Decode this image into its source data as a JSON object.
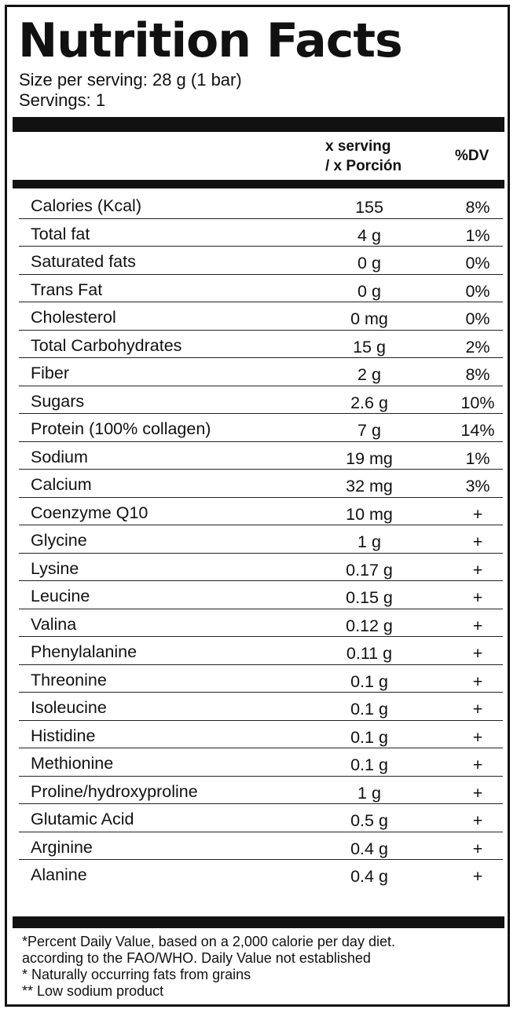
{
  "title": "Nutrition Facts",
  "serving_size": "Size per serving: 28 g (1 bar)",
  "servings": "Servings: 1",
  "columns": {
    "serving_line1": "x serving",
    "serving_line2": "/ x Porción",
    "dv": "%DV"
  },
  "rows": [
    {
      "name": "Calories (Kcal)",
      "amount": "155",
      "dv": "8%"
    },
    {
      "name": "Total fat",
      "amount": "4 g",
      "dv": "1%"
    },
    {
      "name": "Saturated fats",
      "amount": "0 g",
      "dv": "0%"
    },
    {
      "name": "Trans Fat",
      "amount": "0 g",
      "dv": "0%"
    },
    {
      "name": "Cholesterol",
      "amount": "0 mg",
      "dv": "0%"
    },
    {
      "name": "Total Carbohydrates",
      "amount": "15 g",
      "dv": "2%"
    },
    {
      "name": "Fiber",
      "amount": "2 g",
      "dv": "8%"
    },
    {
      "name": "Sugars",
      "amount": "2.6 g",
      "dv": "10%"
    },
    {
      "name": "Protein (100% collagen)",
      "amount": "7 g",
      "dv": "14%"
    },
    {
      "name": "Sodium",
      "amount": "19 mg",
      "dv": "1%"
    },
    {
      "name": "Calcium",
      "amount": "32 mg",
      "dv": "3%"
    },
    {
      "name": "Coenzyme Q10",
      "amount": "10 mg",
      "dv": "+"
    },
    {
      "name": "Glycine",
      "amount": "1 g",
      "dv": "+"
    },
    {
      "name": "Lysine",
      "amount": "0.17 g",
      "dv": "+"
    },
    {
      "name": "Leucine",
      "amount": "0.15 g",
      "dv": "+"
    },
    {
      "name": "Valina",
      "amount": "0.12 g",
      "dv": "+"
    },
    {
      "name": "Phenylalanine",
      "amount": "0.11 g",
      "dv": "+"
    },
    {
      "name": "Threonine",
      "amount": "0.1 g",
      "dv": "+"
    },
    {
      "name": "Isoleucine",
      "amount": "0.1 g",
      "dv": "+"
    },
    {
      "name": "Histidine",
      "amount": "0.1 g",
      "dv": "+"
    },
    {
      "name": "Methionine",
      "amount": "0.1 g",
      "dv": "+"
    },
    {
      "name": "Proline/hydroxyproline",
      "amount": "1 g",
      "dv": "+"
    },
    {
      "name": "Glutamic Acid",
      "amount": "0.5 g",
      "dv": "+"
    },
    {
      "name": "Arginine",
      "amount": "0.4 g",
      "dv": "+"
    },
    {
      "name": "Alanine",
      "amount": "0.4 g",
      "dv": "+"
    }
  ],
  "footnotes": [
    "*Percent Daily Value, based on a 2,000 calorie per day diet.",
    "according to the FAO/WHO. Daily Value not established",
    "* Naturally occurring fats from grains",
    "** Low sodium product"
  ],
  "colors": {
    "ink": "#111111",
    "background": "#ffffff"
  }
}
